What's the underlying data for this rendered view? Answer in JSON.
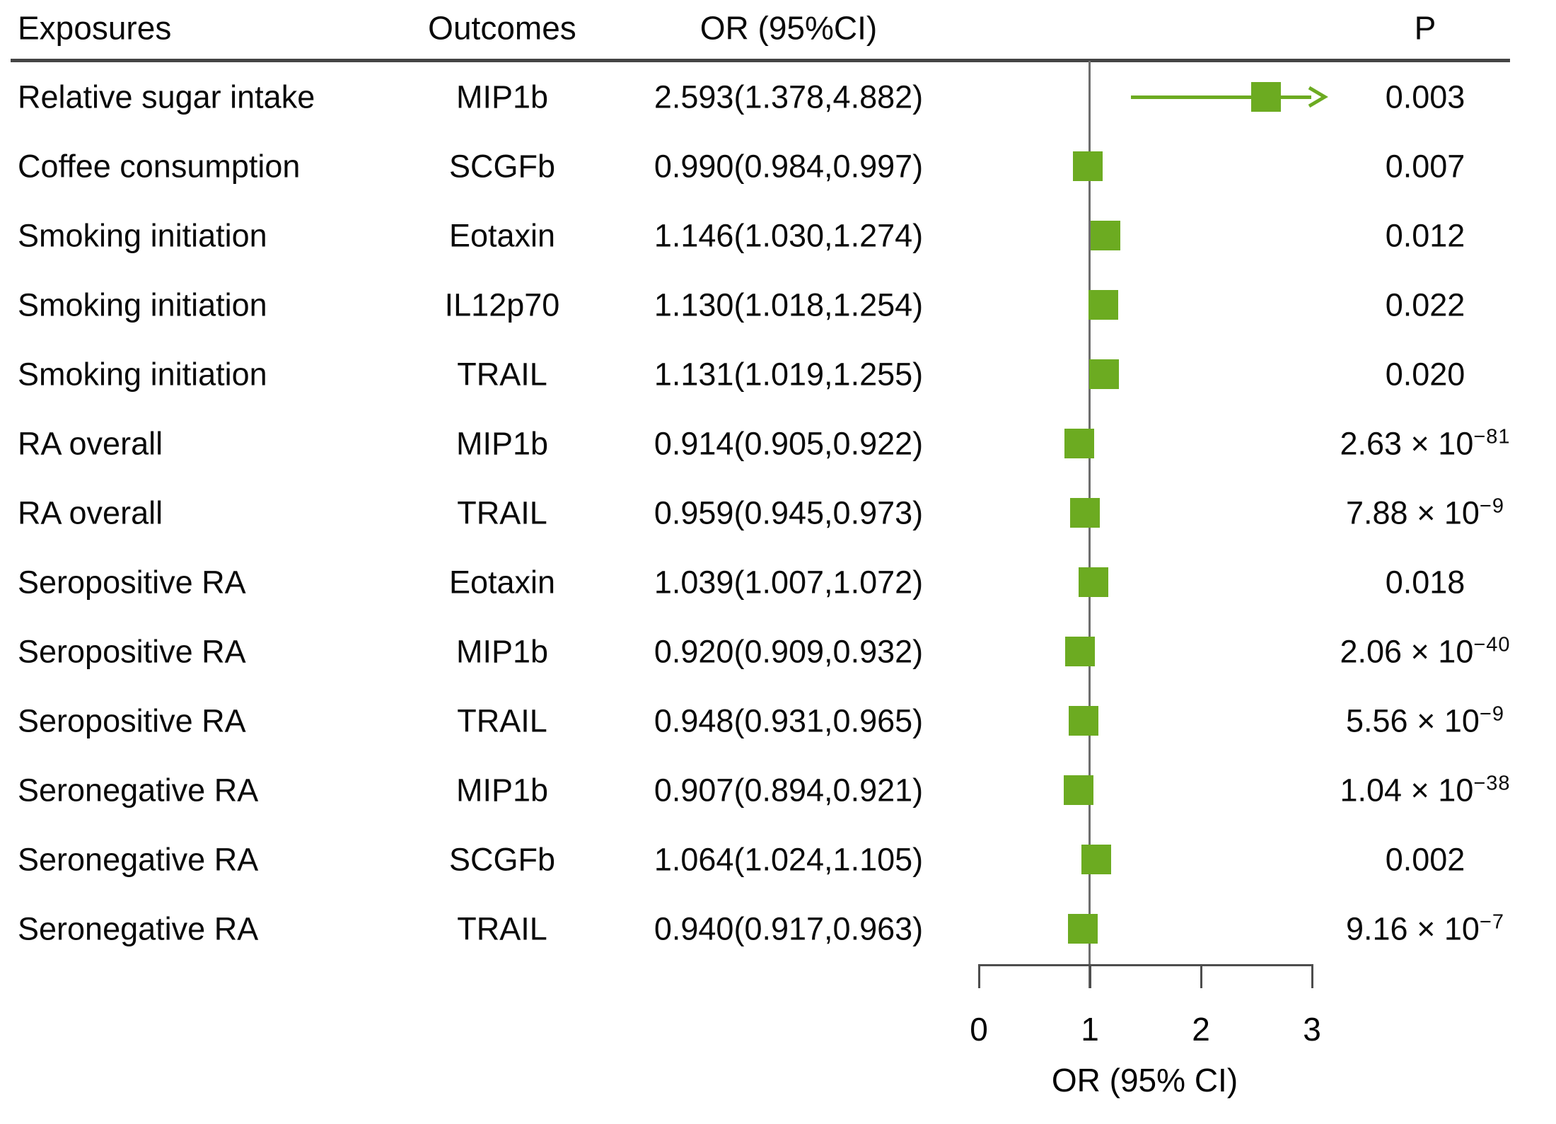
{
  "header": {
    "exposures": "Exposures",
    "outcomes": "Outcomes",
    "or_ci": "OR (95%CI)",
    "p": "P"
  },
  "colors": {
    "marker_green": "#6CAB21",
    "reference_line_gray": "#6E6E6E",
    "axis_gray": "#4D4D4D",
    "separator_gray": "#454545",
    "text_black": "#0A0A0A"
  },
  "chart_data": {
    "type": "forest",
    "title": "",
    "x_axis": {
      "label": "OR (95% CI)",
      "ticks": [
        0,
        1,
        2,
        3
      ],
      "range": [
        0,
        3
      ],
      "reference_line": 1
    },
    "legend": "none",
    "marker_shape": "square",
    "rows": [
      {
        "exposure": "Relative sugar intake",
        "outcome": "MIP1b",
        "or": 2.593,
        "ci_low": 1.378,
        "ci_high": 4.882,
        "or_text": "2.593(1.378,4.882)",
        "p_base": "0.003",
        "p_exp": "",
        "ci_clipped_right": true
      },
      {
        "exposure": "Coffee consumption",
        "outcome": "SCGFb",
        "or": 0.99,
        "ci_low": 0.984,
        "ci_high": 0.997,
        "or_text": "0.990(0.984,0.997)",
        "p_base": "0.007",
        "p_exp": "",
        "ci_clipped_right": false
      },
      {
        "exposure": "Smoking initiation",
        "outcome": "Eotaxin",
        "or": 1.146,
        "ci_low": 1.03,
        "ci_high": 1.274,
        "or_text": "1.146(1.030,1.274)",
        "p_base": "0.012",
        "p_exp": "",
        "ci_clipped_right": false
      },
      {
        "exposure": "Smoking initiation",
        "outcome": "IL12p70",
        "or": 1.13,
        "ci_low": 1.018,
        "ci_high": 1.254,
        "or_text": "1.130(1.018,1.254)",
        "p_base": "0.022",
        "p_exp": "",
        "ci_clipped_right": false
      },
      {
        "exposure": "Smoking initiation",
        "outcome": "TRAIL",
        "or": 1.131,
        "ci_low": 1.019,
        "ci_high": 1.255,
        "or_text": "1.131(1.019,1.255)",
        "p_base": "0.020",
        "p_exp": "",
        "ci_clipped_right": false
      },
      {
        "exposure": "RA overall",
        "outcome": "MIP1b",
        "or": 0.914,
        "ci_low": 0.905,
        "ci_high": 0.922,
        "or_text": "0.914(0.905,0.922)",
        "p_base": "2.63 × 10",
        "p_exp": "−81",
        "ci_clipped_right": false
      },
      {
        "exposure": "RA overall",
        "outcome": "TRAIL",
        "or": 0.959,
        "ci_low": 0.945,
        "ci_high": 0.973,
        "or_text": "0.959(0.945,0.973)",
        "p_base": "7.88 × 10",
        "p_exp": "−9",
        "ci_clipped_right": false
      },
      {
        "exposure": "Seropositive RA",
        "outcome": "Eotaxin",
        "or": 1.039,
        "ci_low": 1.007,
        "ci_high": 1.072,
        "or_text": "1.039(1.007,1.072)",
        "p_base": "0.018",
        "p_exp": "",
        "ci_clipped_right": false
      },
      {
        "exposure": "Seropositive RA",
        "outcome": "MIP1b",
        "or": 0.92,
        "ci_low": 0.909,
        "ci_high": 0.932,
        "or_text": "0.920(0.909,0.932)",
        "p_base": "2.06 × 10",
        "p_exp": "−40",
        "ci_clipped_right": false
      },
      {
        "exposure": "Seropositive RA",
        "outcome": "TRAIL",
        "or": 0.948,
        "ci_low": 0.931,
        "ci_high": 0.965,
        "or_text": "0.948(0.931,0.965)",
        "p_base": "5.56 × 10",
        "p_exp": "−9",
        "ci_clipped_right": false
      },
      {
        "exposure": "Seronegative RA",
        "outcome": "MIP1b",
        "or": 0.907,
        "ci_low": 0.894,
        "ci_high": 0.921,
        "or_text": "0.907(0.894,0.921)",
        "p_base": "1.04 × 10",
        "p_exp": "−38",
        "ci_clipped_right": false
      },
      {
        "exposure": "Seronegative RA",
        "outcome": "SCGFb",
        "or": 1.064,
        "ci_low": 1.024,
        "ci_high": 1.105,
        "or_text": "1.064(1.024,1.105)",
        "p_base": "0.002",
        "p_exp": "",
        "ci_clipped_right": false
      },
      {
        "exposure": "Seronegative RA",
        "outcome": "TRAIL",
        "or": 0.94,
        "ci_low": 0.917,
        "ci_high": 0.963,
        "or_text": "0.940(0.917,0.963)",
        "p_base": "9.16 × 10",
        "p_exp": "−7",
        "ci_clipped_right": false
      }
    ]
  }
}
